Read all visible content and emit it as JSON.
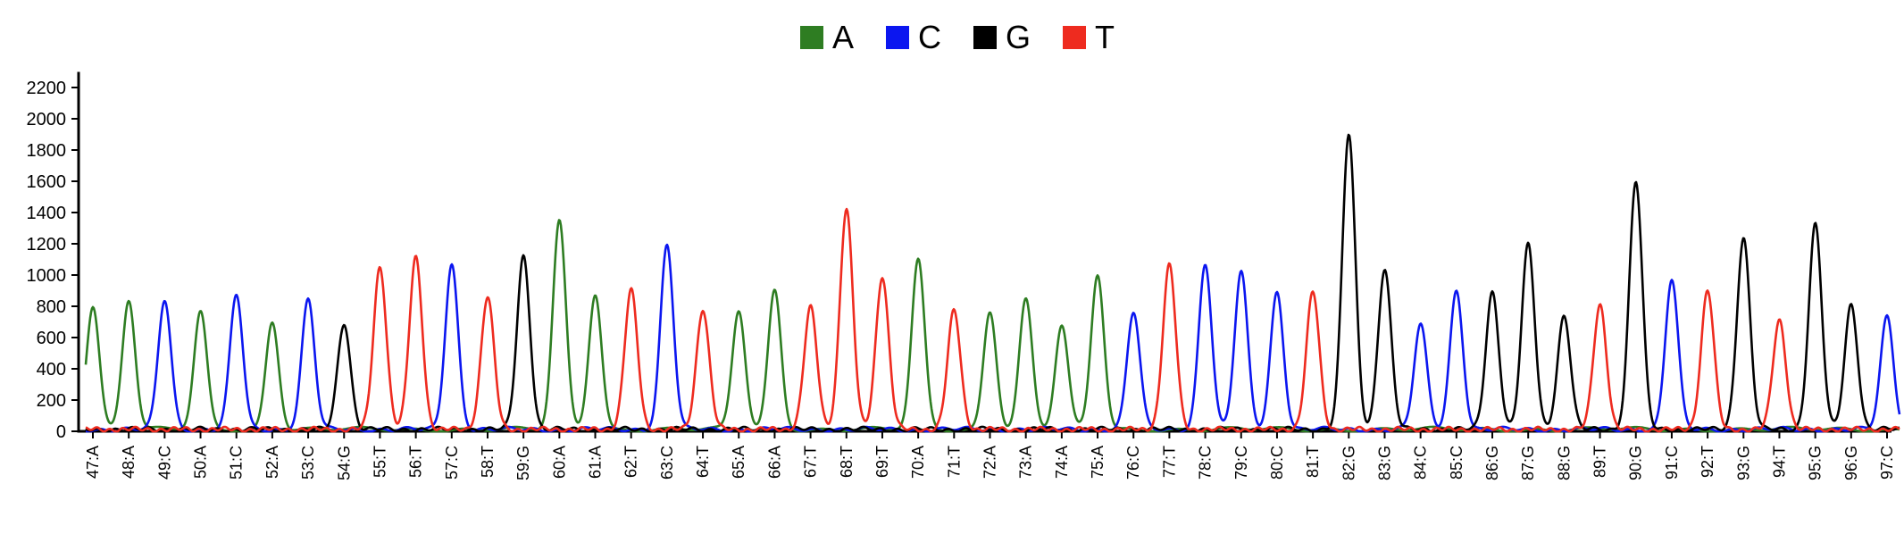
{
  "legend": [
    {
      "label": "A",
      "color": "#2e7d22"
    },
    {
      "label": "C",
      "color": "#0b16f0"
    },
    {
      "label": "G",
      "color": "#000000"
    },
    {
      "label": "T",
      "color": "#ee2b1f"
    }
  ],
  "chart_data": {
    "type": "line",
    "title": "",
    "xlabel": "",
    "ylabel": "",
    "ylim": [
      0,
      2300
    ],
    "yticks": [
      0,
      200,
      400,
      600,
      800,
      1000,
      1200,
      1400,
      1600,
      1800,
      2000,
      2200
    ],
    "grid": false,
    "legend_position": "top-center",
    "positions": [
      "47:A",
      "48:A",
      "49:C",
      "50:A",
      "51:C",
      "52:A",
      "53:C",
      "54:G",
      "55:T",
      "56:T",
      "57:C",
      "58:T",
      "59:G",
      "60:A",
      "61:A",
      "62:T",
      "63:C",
      "64:T",
      "65:A",
      "66:A",
      "67:T",
      "68:T",
      "69:T",
      "70:A",
      "71:T",
      "72:A",
      "73:A",
      "74:A",
      "75:A",
      "76:C",
      "77:T",
      "78:C",
      "79:C",
      "80:C",
      "81:T",
      "82:G",
      "83:G",
      "84:C",
      "85:C",
      "86:G",
      "87:G",
      "88:G",
      "89:T",
      "90:G",
      "91:C",
      "92:T",
      "93:G",
      "94:T",
      "95:G",
      "96:G",
      "97:C"
    ],
    "peak_heights": [
      790,
      830,
      830,
      750,
      860,
      690,
      830,
      680,
      1040,
      1100,
      1060,
      850,
      1110,
      1330,
      870,
      890,
      1180,
      770,
      760,
      890,
      780,
      1410,
      980,
      1080,
      760,
      760,
      830,
      660,
      990,
      750,
      1050,
      1060,
      1010,
      880,
      880,
      1890,
      1030,
      670,
      890,
      880,
      1180,
      730,
      800,
      1590,
      960,
      890,
      1230,
      700,
      1310,
      800,
      720
    ],
    "series": [
      {
        "name": "A",
        "color": "#2e7d22"
      },
      {
        "name": "C",
        "color": "#0b16f0"
      },
      {
        "name": "G",
        "color": "#000000"
      },
      {
        "name": "T",
        "color": "#ee2b1f"
      }
    ]
  }
}
